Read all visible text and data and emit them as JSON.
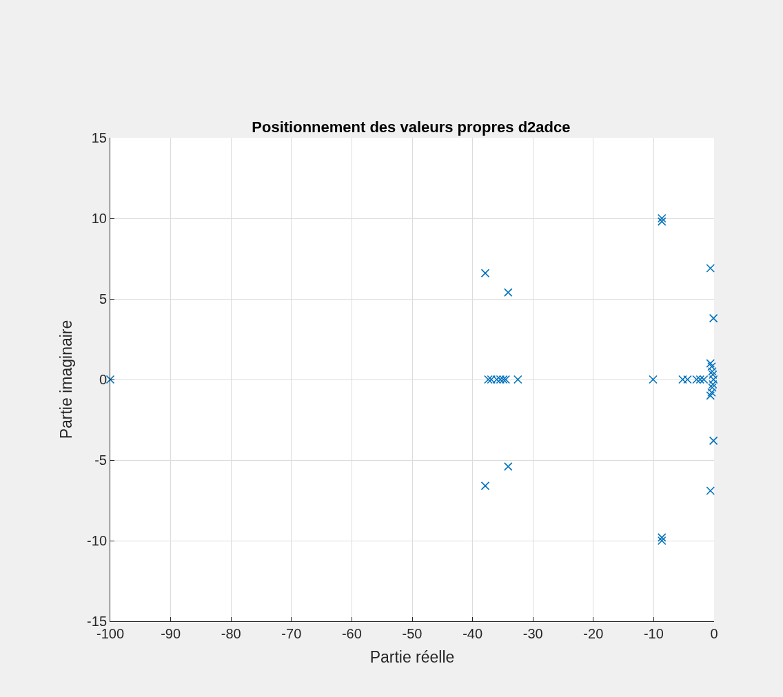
{
  "chart_data": {
    "type": "scatter",
    "title": "Positionnement des valeurs propres d2adce",
    "xlabel": "Partie réelle",
    "ylabel": "Partie imaginaire",
    "series": [
      {
        "color": "#0072bd",
        "x": [
          -100,
          -37.9,
          -37.9,
          -34.1,
          -34.1,
          -37.4,
          -36.9,
          -36.0,
          -35.4,
          -34.9,
          -34.5,
          -32.5,
          -8.65,
          -8.65,
          -8.65,
          -8.65,
          -0.6,
          -0.6,
          -0.1,
          -0.1,
          -10.1,
          -5.2,
          -4.4,
          -2.9,
          -2.3,
          -1.7,
          -0.6,
          -0.4,
          -0.3,
          -0.2,
          -0.1,
          -0.2,
          -0.3,
          -0.4,
          -0.6
        ],
        "values": [
          0,
          6.6,
          -6.6,
          5.4,
          -5.4,
          0,
          0,
          0,
          0,
          0,
          0,
          0,
          10.0,
          9.8,
          -10.0,
          -9.8,
          6.9,
          -6.9,
          3.8,
          -3.8,
          0,
          0,
          0,
          0,
          0,
          0,
          1.0,
          0.8,
          0.5,
          0.3,
          0,
          -0.3,
          -0.5,
          -0.8,
          -1.0
        ]
      }
    ],
    "xlim": [
      -100,
      0
    ],
    "ylim": [
      -15,
      15
    ],
    "xticks": [
      -100,
      -90,
      -80,
      -70,
      -60,
      -50,
      -40,
      -30,
      -20,
      -10,
      0
    ],
    "yticks": [
      -15,
      -10,
      -5,
      0,
      5,
      10,
      15
    ],
    "grid": true,
    "marker": "cross"
  }
}
